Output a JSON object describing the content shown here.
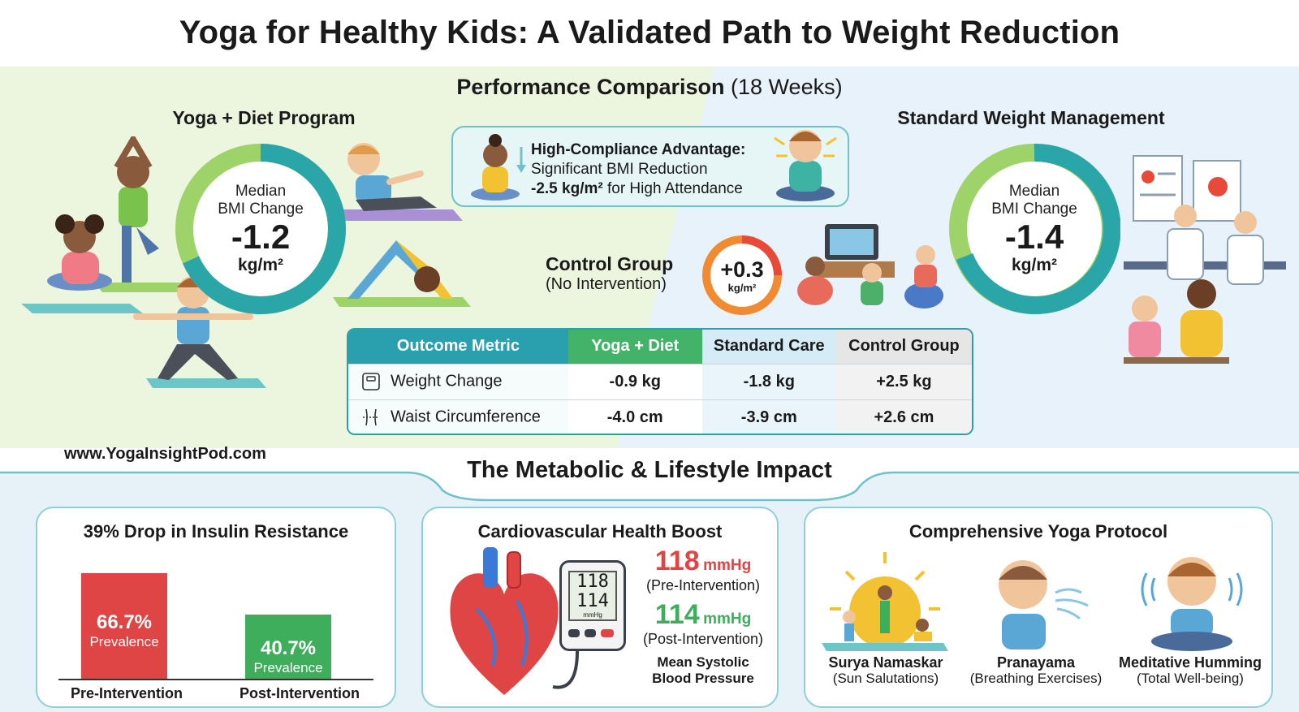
{
  "title": "Yoga for Healthy Kids: A Validated Path to Weight Reduction",
  "comparison": {
    "title_bold": "Performance Comparison",
    "title_rest": "(18 Weeks)"
  },
  "yoga_program": {
    "title": "Yoga + Diet Program",
    "ring_label_1": "Median",
    "ring_label_2": "BMI Change",
    "value": "-1.2",
    "unit": "kg/m²"
  },
  "standard_program": {
    "title": "Standard Weight Management",
    "ring_label_1": "Median",
    "ring_label_2": "BMI Change",
    "value": "-1.4",
    "unit": "kg/m²"
  },
  "callout": {
    "heading": "High-Compliance Advantage:",
    "line2": "Significant BMI Reduction",
    "value": "-2.5 kg/m²",
    "line3_rest": "for High Attendance"
  },
  "control_group": {
    "label": "Control Group",
    "sub": "(No Intervention)",
    "value": "+0.3",
    "unit": "kg/m²"
  },
  "table": {
    "headers": [
      "Outcome Metric",
      "Yoga + Diet",
      "Standard Care",
      "Control Group"
    ],
    "rows": [
      {
        "metric": "Weight Change",
        "icon": "scale-icon",
        "values": [
          "-0.9 kg",
          "-1.8 kg",
          "+2.5 kg"
        ]
      },
      {
        "metric": "Waist Circumference",
        "icon": "waist-icon",
        "values": [
          "-4.0 cm",
          "-3.9 cm",
          "+2.6 cm"
        ]
      }
    ]
  },
  "website": "www.YogaInsightPod.com",
  "impact_title": "The Metabolic & Lifestyle Impact",
  "insulin": {
    "title": "39% Drop in Insulin Resistance",
    "bars": [
      {
        "value": 66.7,
        "value_label": "66.7%",
        "sub": "Prevalence",
        "label": "Pre-Intervention",
        "color": "#e04545"
      },
      {
        "value": 40.7,
        "value_label": "40.7%",
        "sub": "Prevalence",
        "label": "Post-Intervention",
        "color": "#3fae5c"
      }
    ]
  },
  "cardio": {
    "title": "Cardiovascular Health Boost",
    "monitor_top": "118",
    "monitor_bottom": "114",
    "monitor_unit": "mmHg",
    "pre_value": "118",
    "pre_unit": "mmHg",
    "pre_note": "(Pre-Intervention)",
    "post_value": "114",
    "post_unit": "mmHg",
    "post_note": "(Post-Intervention)",
    "caption_1": "Mean Systolic",
    "caption_2": "Blood Pressure"
  },
  "protocol": {
    "title": "Comprehensive Yoga Protocol",
    "items": [
      {
        "name": "Surya Namaskar",
        "sub": "(Sun Salutations)"
      },
      {
        "name": "Pranayama",
        "sub": "(Breathing Exercises)"
      },
      {
        "name": "Meditative Humming",
        "sub": "(Total Well-being)"
      }
    ]
  },
  "colors": {
    "teal": "#2a9fae",
    "green": "#43b36a",
    "red": "#e04545",
    "yoga_ring_green": "#9ed36a",
    "control_ring_orange": "#f28a32"
  }
}
